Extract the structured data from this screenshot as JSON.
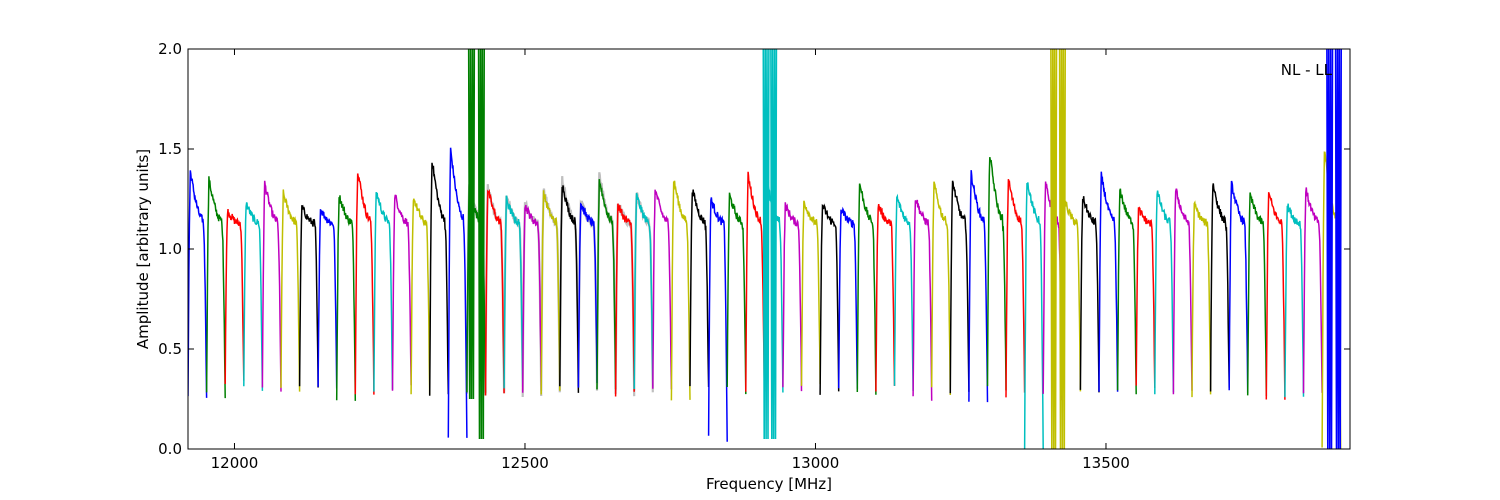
{
  "chart_data": {
    "type": "line",
    "title": "",
    "annotation": "NL - LL",
    "xlabel": "Frequency [MHz]",
    "ylabel": "Amplitude [arbitrary units]",
    "xlim": [
      11920,
      13920
    ],
    "ylim": [
      0,
      2.0
    ],
    "xticks": [
      12000,
      12500,
      13000,
      13500
    ],
    "xtick_labels": [
      "12000",
      "12500",
      "13000",
      "13500"
    ],
    "yticks": [
      0.0,
      0.5,
      1.0,
      1.5,
      2.0
    ],
    "ytick_labels": [
      "0.0",
      "0.5",
      "1.0",
      "1.5",
      "2.0"
    ],
    "grid": false,
    "band_start": 11920,
    "band_width": 32,
    "n_bands": 62,
    "palette": [
      "#0000ff",
      "#007f00",
      "#ff0000",
      "#00bfbf",
      "#bf00bf",
      "#bfbf00",
      "#000000"
    ],
    "reference_color": "#bfbfbf",
    "reference_range": [
      12400,
      12700
    ],
    "band_peaks": [
      1.39,
      1.35,
      1.19,
      1.23,
      1.33,
      1.28,
      1.21,
      1.2,
      1.27,
      1.4,
      1.29,
      1.27,
      1.26,
      1.45,
      1.5,
      1.3,
      1.3,
      1.25,
      1.22,
      1.28,
      1.33,
      1.23,
      1.35,
      1.22,
      1.27,
      1.3,
      1.35,
      1.3,
      1.25,
      1.27,
      1.37,
      1.34,
      1.22,
      1.24,
      1.22,
      1.2,
      1.33,
      1.22,
      1.26,
      1.26,
      1.33,
      1.34,
      1.38,
      1.48,
      1.35,
      1.35,
      1.33,
      1.25,
      1.26,
      1.37,
      1.3,
      1.2,
      1.29,
      1.3,
      1.22,
      1.33,
      1.33,
      1.27,
      1.28,
      1.22,
      1.3,
      1.5
    ],
    "band_minima": [
      0.27,
      0.27,
      0.33,
      0.3,
      0.29,
      0.29,
      0.3,
      0.3,
      0.26,
      0.29,
      0.28,
      0.3,
      0.27,
      0.26,
      0.05,
      0.27,
      0.26,
      0.3,
      0.28,
      0.28,
      0.3,
      0.32,
      0.29,
      0.28,
      0.3,
      0.29,
      0.25,
      0.3,
      0.05,
      0.29,
      0.28,
      0.29,
      0.3,
      0.31,
      0.29,
      0.3,
      0.29,
      0.3,
      0.3,
      0.26,
      0.29,
      0.28,
      0.25,
      0.3,
      0.27,
      0.0,
      0.26,
      0.28,
      0.3,
      0.29,
      0.29,
      0.31,
      0.28,
      0.29,
      0.27,
      0.3,
      0.29,
      0.28,
      0.25,
      0.26,
      0.28,
      0.0
    ],
    "spikes": [
      {
        "x": 12408,
        "ymin": 0.25,
        "ymax": 2.0,
        "color": "#007f00"
      },
      {
        "x": 12425,
        "ymin": 0.05,
        "ymax": 2.0,
        "color": "#007f00"
      },
      {
        "x": 12915,
        "ymin": 0.05,
        "ymax": 2.0,
        "color": "#00bfbf"
      },
      {
        "x": 12928,
        "ymin": 0.05,
        "ymax": 2.0,
        "color": "#00bfbf"
      },
      {
        "x": 13410,
        "ymin": 0.0,
        "ymax": 2.0,
        "color": "#bfbf00"
      },
      {
        "x": 13425,
        "ymin": 0.0,
        "ymax": 2.0,
        "color": "#bfbf00"
      },
      {
        "x": 13885,
        "ymin": 0.0,
        "ymax": 2.0,
        "color": "#0000ff"
      },
      {
        "x": 13900,
        "ymin": 0.0,
        "ymax": 2.0,
        "color": "#0000ff"
      }
    ]
  }
}
